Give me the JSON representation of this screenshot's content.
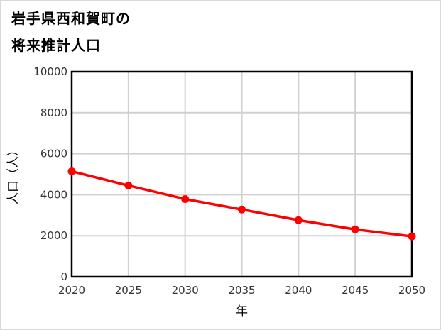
{
  "title": {
    "line1": "岩手県西和賀町の",
    "line2": "将来推計人口"
  },
  "colors": {
    "series": "#ff0000",
    "grid": "#d0d0d0",
    "axis": "#000000"
  },
  "chart_data": {
    "type": "line",
    "title": "岩手県西和賀町の将来推計人口",
    "xlabel": "年",
    "ylabel": "人口（人）",
    "categories": [
      "2020",
      "2025",
      "2030",
      "2035",
      "2040",
      "2045",
      "2050"
    ],
    "series": [
      {
        "name": "人口",
        "values": [
          5140,
          4450,
          3790,
          3280,
          2760,
          2310,
          1970
        ]
      }
    ],
    "ylim": [
      0,
      10000
    ],
    "yticks": [
      "0",
      "2000",
      "4000",
      "6000",
      "8000",
      "10000"
    ],
    "grid": true,
    "legend": "none"
  }
}
